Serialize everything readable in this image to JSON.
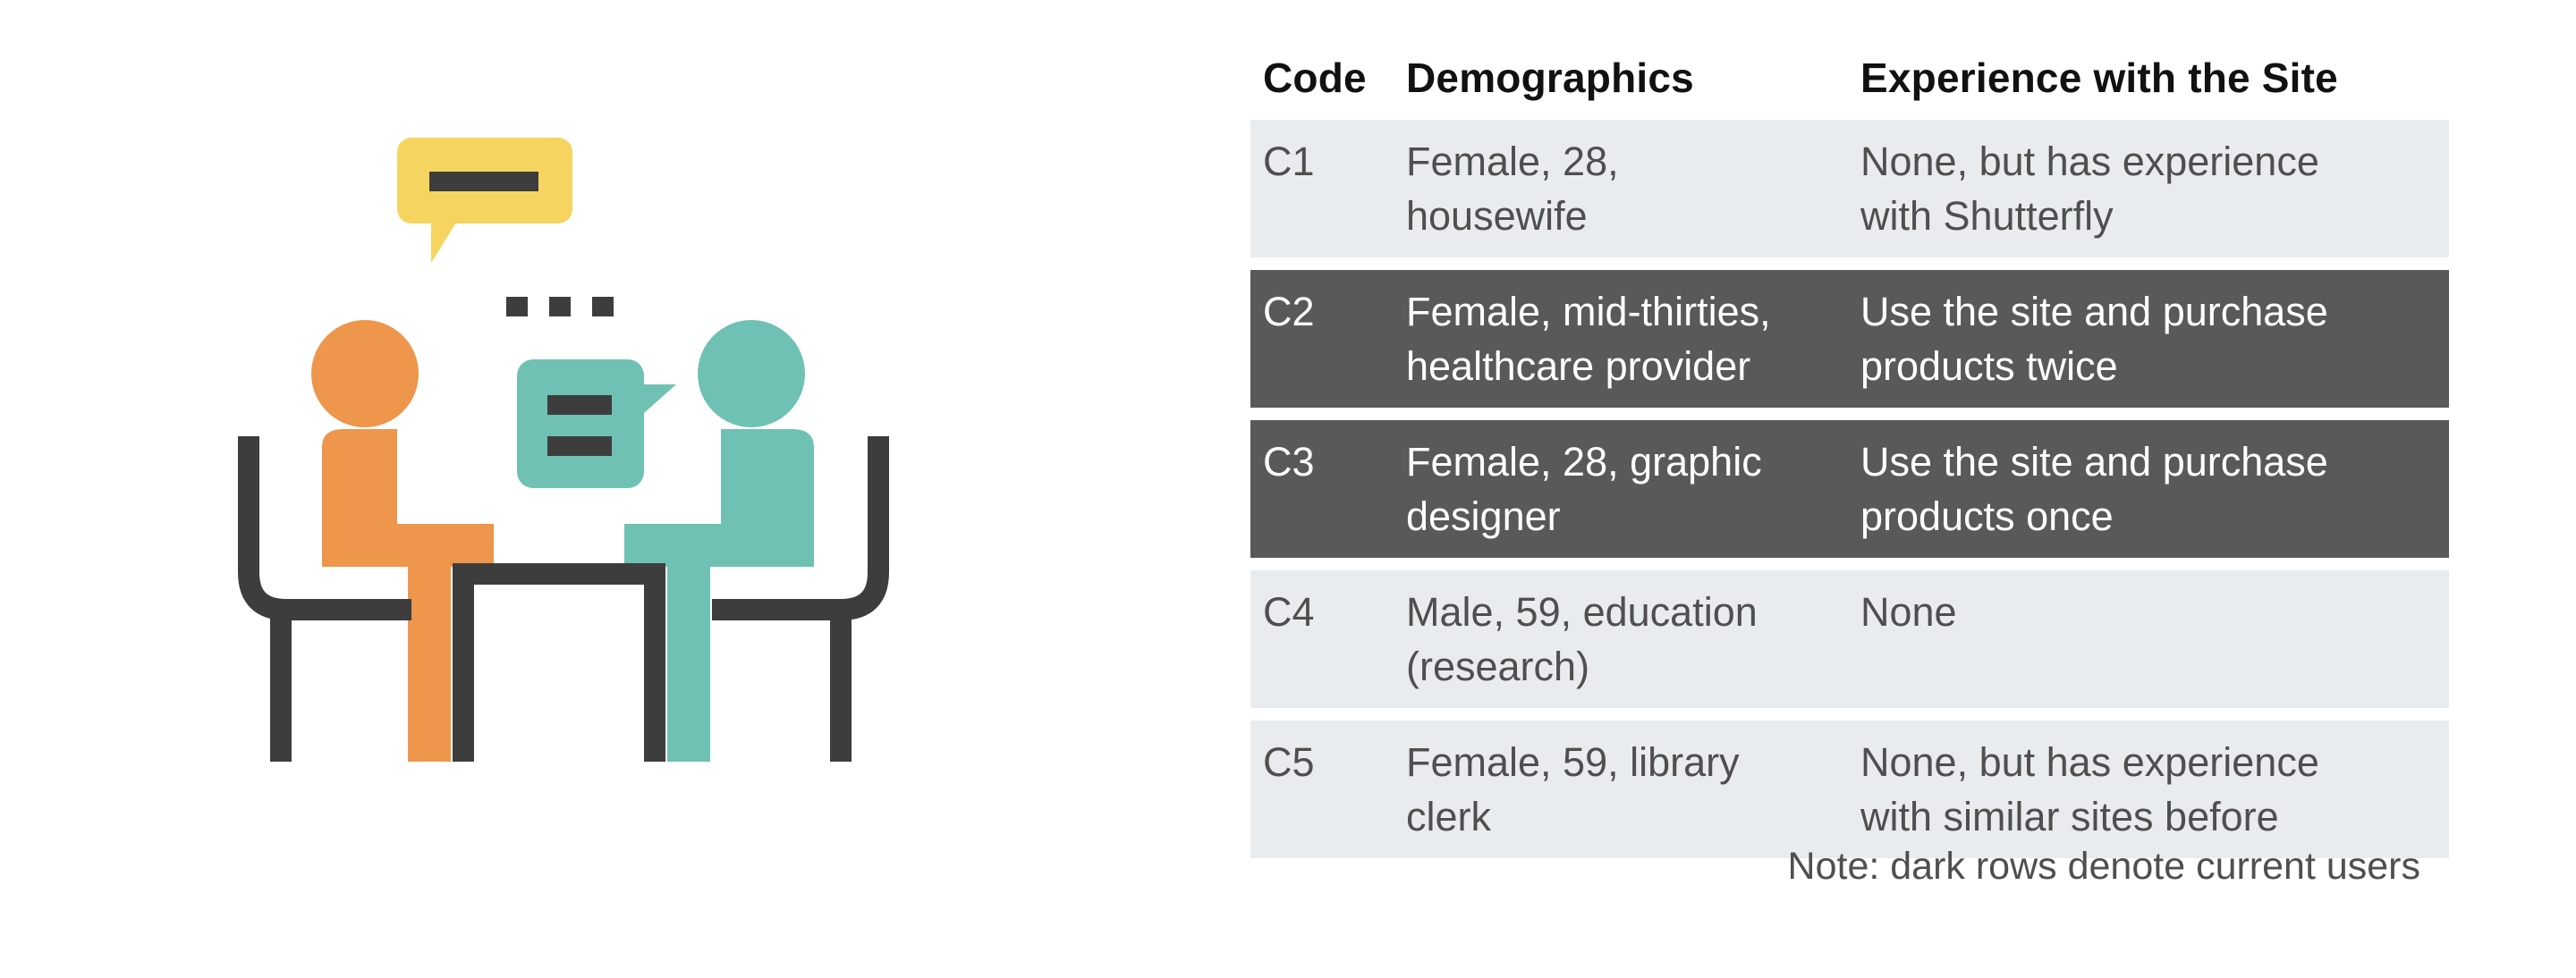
{
  "illustration": {
    "icon": "interview-meeting-illustration",
    "colors": {
      "speech_yellow": "#f5d55f",
      "person_left": "#ee964b",
      "person_right": "#6fc1b3",
      "furniture": "#3d3d3d"
    }
  },
  "table": {
    "headers": {
      "code": "Code",
      "demographics": "Demographics",
      "experience": "Experience with the Site"
    },
    "rows": [
      {
        "code": "C1",
        "demographics_line1": "Female, 28,",
        "demographics_line2": "housewife",
        "experience_line1": "None, but has experience",
        "experience_line2": "with Shutterfly",
        "current_user": false
      },
      {
        "code": "C2",
        "demographics_line1": "Female, mid-thirties,",
        "demographics_line2": "healthcare provider",
        "experience_line1": "Use the site and purchase",
        "experience_line2": "products twice",
        "current_user": true
      },
      {
        "code": "C3",
        "demographics_line1": "Female, 28, graphic",
        "demographics_line2": "designer",
        "experience_line1": "Use the site and purchase",
        "experience_line2": "products once",
        "current_user": true
      },
      {
        "code": "C4",
        "demographics_line1": "Male, 59, education",
        "demographics_line2": "(research)",
        "experience_line1": "None",
        "experience_line2": "",
        "current_user": false
      },
      {
        "code": "C5",
        "demographics_line1": "Female, 59, library",
        "demographics_line2": "clerk",
        "experience_line1": "None, but has experience",
        "experience_line2": "with similar sites before",
        "current_user": false
      }
    ],
    "row_colors": {
      "light": "#e9ecee",
      "dark": "#595959"
    },
    "note": "Note: dark rows denote current users"
  }
}
